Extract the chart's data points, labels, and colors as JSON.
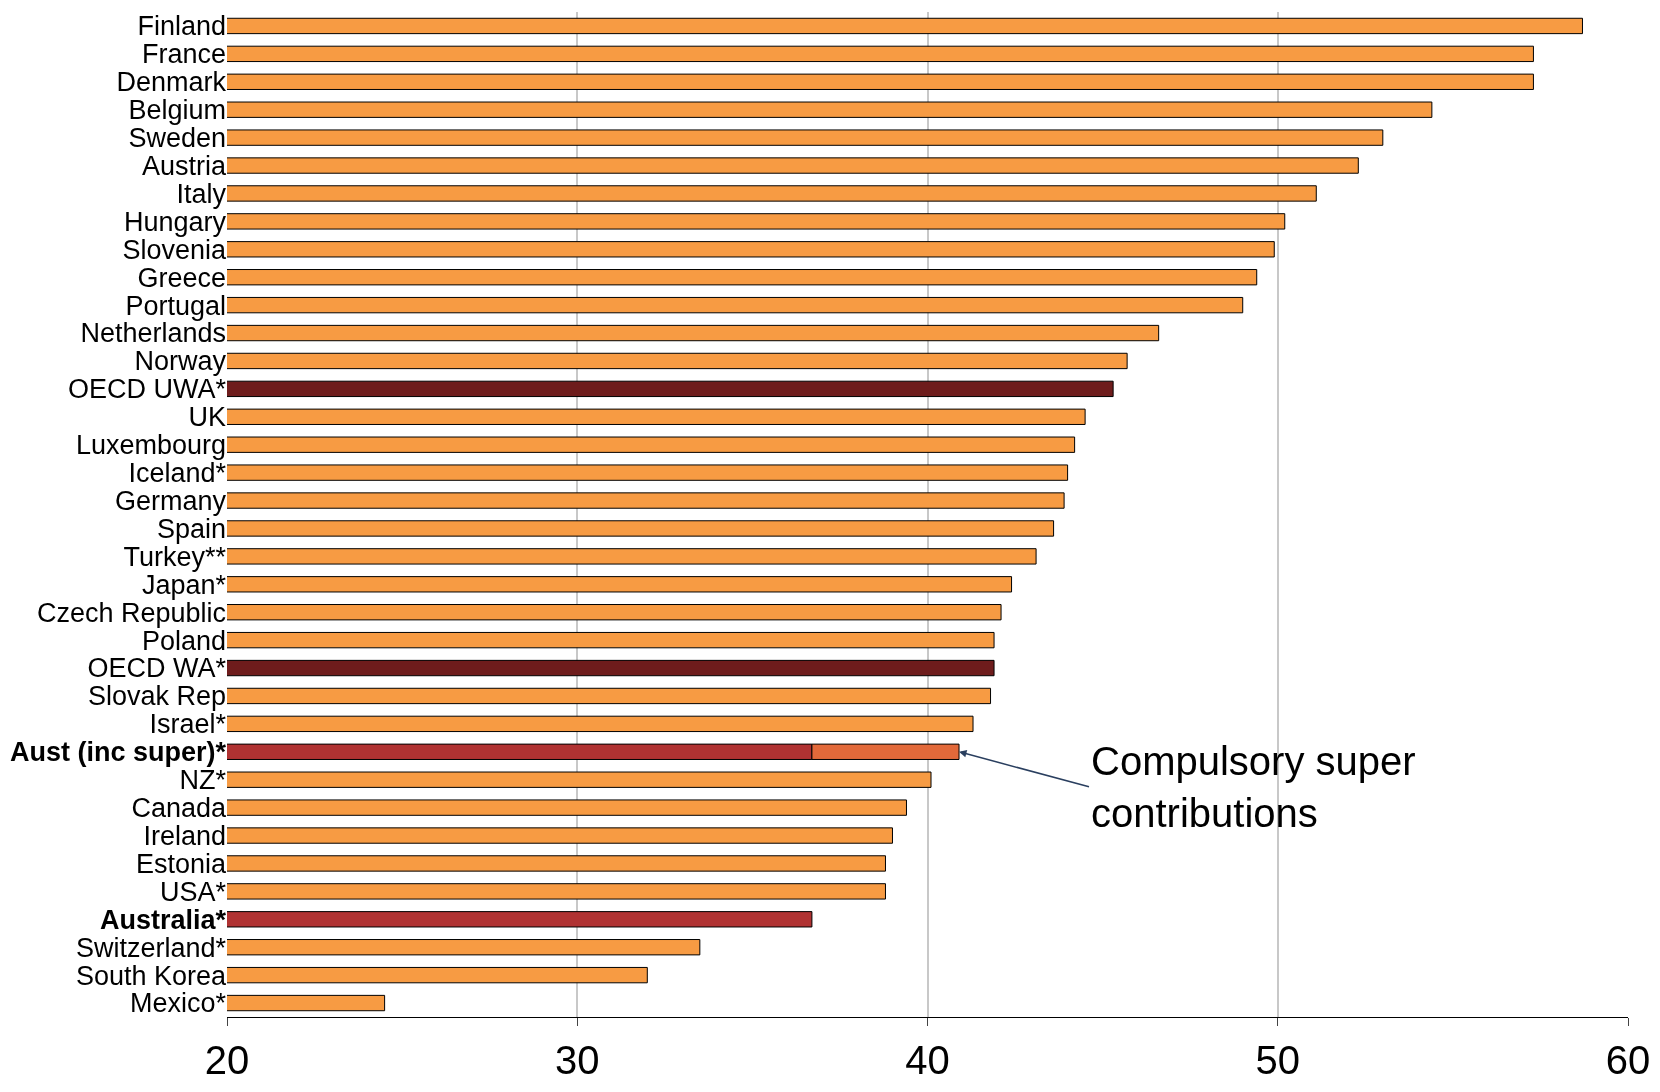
{
  "chart_data": {
    "type": "bar",
    "orientation": "horizontal",
    "categories": [
      "Finland",
      "France",
      "Denmark",
      "Belgium",
      "Sweden",
      "Austria",
      "Italy",
      "Hungary",
      "Slovenia",
      "Greece",
      "Portugal",
      "Netherlands",
      "Norway",
      "OECD UWA*",
      "UK",
      "Luxembourg",
      "Iceland*",
      "Germany",
      "Spain",
      "Turkey**",
      "Japan*",
      "Czech Republic",
      "Poland",
      "OECD WA*",
      "Slovak Rep",
      "Israel*",
      "Aust (inc super)*",
      "NZ*",
      "Canada",
      "Ireland",
      "Estonia",
      "USA*",
      "Australia*",
      "Switzerland*",
      "South Korea",
      "Mexico*"
    ],
    "series": [
      {
        "colors": [
          "#f79b43",
          "#f79b43",
          "#f79b43",
          "#f79b43",
          "#f79b43",
          "#f79b43",
          "#f79b43",
          "#f79b43",
          "#f79b43",
          "#f79b43",
          "#f79b43",
          "#f79b43",
          "#f79b43",
          "#6e1c1c",
          "#f79b43",
          "#f79b43",
          "#f79b43",
          "#f79b43",
          "#f79b43",
          "#f79b43",
          "#f79b43",
          "#f79b43",
          "#f79b43",
          "#6e1c1c",
          "#f79b43",
          "#f79b43",
          "#b03232",
          "#f79b43",
          "#f79b43",
          "#f79b43",
          "#f79b43",
          "#f79b43",
          "#b03232",
          "#f79b43",
          "#f79b43",
          "#f79b43"
        ],
        "values": [
          58.7,
          57.3,
          57.3,
          54.4,
          53.0,
          52.3,
          51.1,
          50.2,
          49.9,
          49.4,
          49.0,
          46.6,
          45.7,
          45.3,
          44.5,
          44.2,
          44.0,
          43.9,
          43.6,
          43.1,
          42.4,
          42.1,
          41.9,
          41.9,
          41.8,
          41.3,
          36.7,
          40.1,
          39.4,
          39.0,
          38.8,
          38.8,
          36.7,
          33.5,
          32.0,
          24.5
        ]
      },
      {
        "color": "#e2693a",
        "base": [
          null,
          null,
          null,
          null,
          null,
          null,
          null,
          null,
          null,
          null,
          null,
          null,
          null,
          null,
          null,
          null,
          null,
          null,
          null,
          null,
          null,
          null,
          null,
          null,
          null,
          null,
          36.7,
          null,
          null,
          null,
          null,
          null,
          null,
          null,
          null,
          null
        ],
        "values": [
          null,
          null,
          null,
          null,
          null,
          null,
          null,
          null,
          null,
          null,
          null,
          null,
          null,
          null,
          null,
          null,
          null,
          null,
          null,
          null,
          null,
          null,
          null,
          null,
          null,
          null,
          4.2,
          null,
          null,
          null,
          null,
          null,
          null,
          null,
          null,
          null
        ]
      }
    ],
    "xlim": [
      20,
      60
    ],
    "xticks": [
      20,
      30,
      40,
      50,
      60
    ],
    "grid": "x",
    "annotations": [
      {
        "text": "Compulsory super\ncontributions",
        "x": 40.9,
        "y": "Aust (inc super)*"
      }
    ]
  }
}
